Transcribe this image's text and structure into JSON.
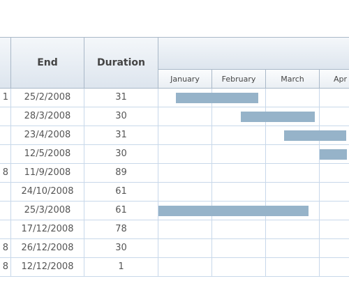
{
  "headers": {
    "end": "End",
    "duration": "Duration"
  },
  "months": [
    "January",
    "February",
    "March",
    "Apr"
  ],
  "rows": [
    {
      "start_fragment": "1",
      "end": "25/2/2008",
      "duration": "31",
      "bar_start_month": 0.33,
      "bar_end_month": 1.86
    },
    {
      "start_fragment": "",
      "end": "28/3/2008",
      "duration": "30",
      "bar_start_month": 1.53,
      "bar_end_month": 2.91
    },
    {
      "start_fragment": "",
      "end": "23/4/2008",
      "duration": "31",
      "bar_start_month": 2.34,
      "bar_end_month": 3.5
    },
    {
      "start_fragment": "",
      "end": "12/5/2008",
      "duration": "30",
      "bar_start_month": 3.0,
      "bar_end_month": 3.5
    },
    {
      "start_fragment": "8",
      "end": "11/9/2008",
      "duration": "89",
      "bar_start_month": null,
      "bar_end_month": null
    },
    {
      "start_fragment": "",
      "end": "24/10/2008",
      "duration": "61",
      "bar_start_month": null,
      "bar_end_month": null
    },
    {
      "start_fragment": "",
      "end": "25/3/2008",
      "duration": "61",
      "bar_start_month": 0.0,
      "bar_end_month": 2.79
    },
    {
      "start_fragment": "",
      "end": "17/12/2008",
      "duration": "78",
      "bar_start_month": null,
      "bar_end_month": null
    },
    {
      "start_fragment": "8",
      "end": "26/12/2008",
      "duration": "30",
      "bar_start_month": null,
      "bar_end_month": null
    },
    {
      "start_fragment": "8",
      "end": "12/12/2008",
      "duration": "1",
      "bar_start_month": null,
      "bar_end_month": null
    }
  ]
}
